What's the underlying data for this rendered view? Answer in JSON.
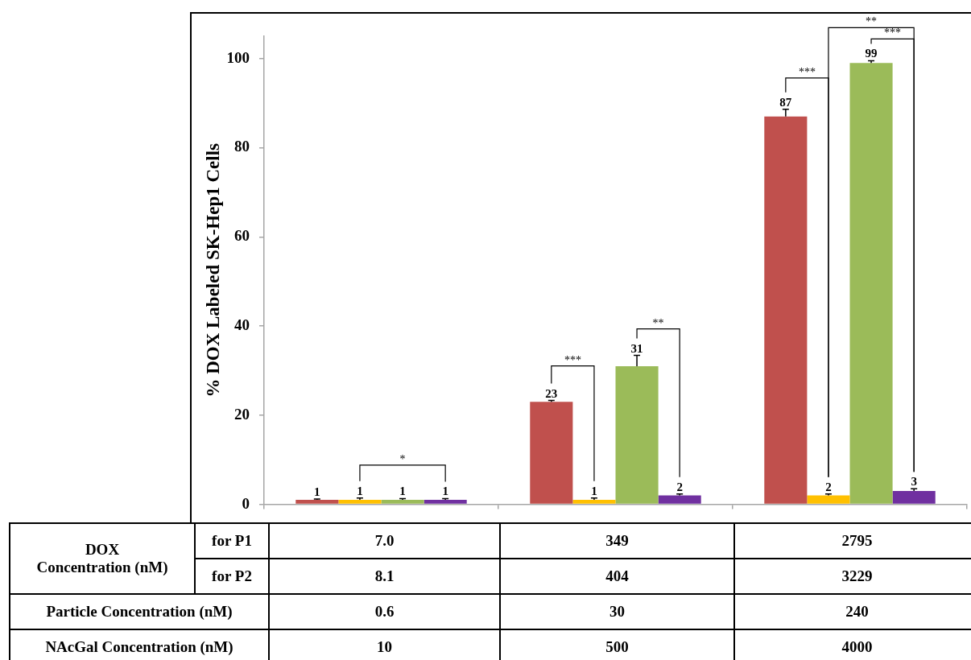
{
  "chart_data": {
    "type": "bar",
    "ylabel": "% DOX Labeled SK-Hep1 Cells",
    "categories": [
      null,
      null,
      null
    ],
    "series": [
      {
        "color": "#c0504d",
        "values": [
          1,
          23,
          87
        ],
        "errors": [
          [
            1,
            1.2
          ],
          [
            23,
            23.3
          ],
          [
            87,
            88.6
          ]
        ]
      },
      {
        "color": "#ffc000",
        "values": [
          1,
          1,
          2
        ],
        "errors": [
          [
            1,
            1.4
          ],
          [
            1,
            1.4
          ],
          [
            2,
            2.3
          ]
        ]
      },
      {
        "color": "#9bbb59",
        "values": [
          1,
          31,
          99
        ],
        "errors": [
          [
            1,
            1.3
          ],
          [
            31,
            33.4
          ],
          [
            99,
            99.5
          ]
        ]
      },
      {
        "color": "#7030a0",
        "values": [
          1,
          2,
          3
        ],
        "errors": [
          [
            1,
            1.3
          ],
          [
            2,
            2.3
          ],
          [
            3,
            3.5
          ]
        ]
      }
    ],
    "ylim": [
      0,
      105
    ],
    "yticks": [
      0,
      20,
      40,
      60,
      80,
      100
    ],
    "tick_labels": "y",
    "data_labels": true,
    "annotations": [
      "*",
      "***",
      "**",
      "***",
      "**",
      "***",
      "DOX Concentration (nM)",
      "for P1",
      "7.0",
      "349",
      "2795",
      "for P2",
      "8.1",
      "404",
      "3229",
      "Particle Concentration (nM)",
      "0.6",
      "30",
      "240",
      "NAcGal Concentration (nM)",
      "10",
      "500",
      "4000"
    ]
  }
}
